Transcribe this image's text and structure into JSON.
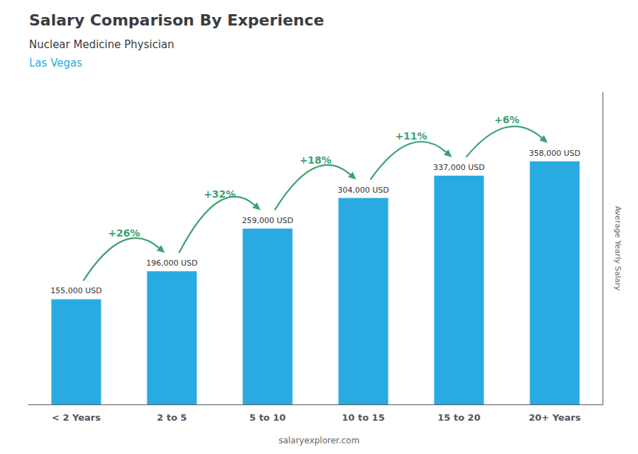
{
  "chart_data": {
    "type": "bar",
    "title": "Salary Comparison By Experience",
    "subtitle": "Nuclear Medicine Physician",
    "city": "Las Vegas",
    "categories": [
      "< 2 Years",
      "2 to 5",
      "5 to 10",
      "10 to 15",
      "15 to 20",
      "20+ Years"
    ],
    "values": [
      155000,
      196000,
      259000,
      304000,
      337000,
      358000
    ],
    "value_labels": [
      "155,000 USD",
      "196,000 USD",
      "259,000 USD",
      "304,000 USD",
      "337,000 USD",
      "358,000 USD"
    ],
    "data_labels": true,
    "annotations": [
      "+26%",
      "+32%",
      "+18%",
      "+11%",
      "+6%"
    ],
    "color": "#29ABE2",
    "ylabel": "Average Yearly Salary",
    "ylim": [
      0,
      460000
    ],
    "tick_labels": "x",
    "grid": false,
    "footer": "salaryexplorer.com"
  }
}
